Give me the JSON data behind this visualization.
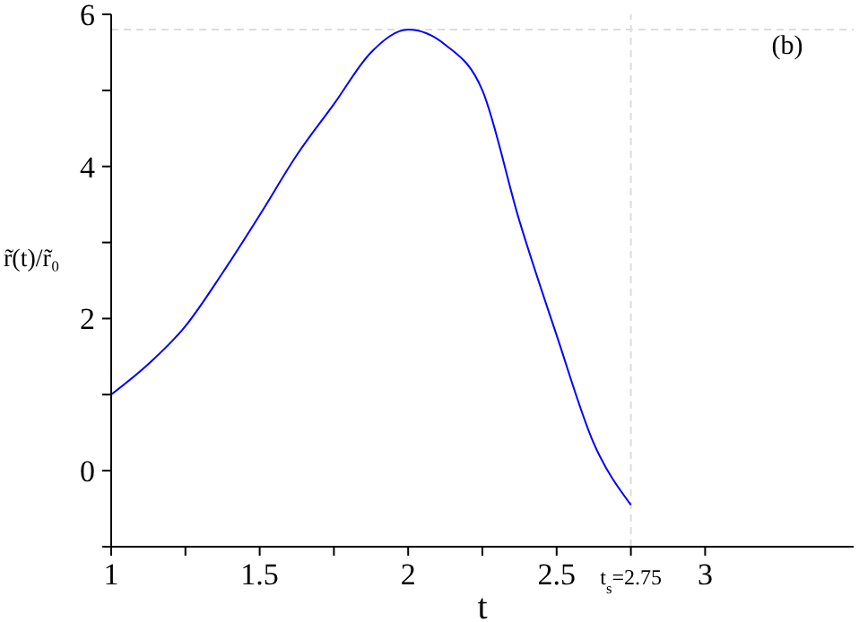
{
  "chart_data": {
    "type": "line",
    "xlabel": "t",
    "ylabel": "r̃(t)/r̃₀",
    "annotations": [
      "(b)"
    ],
    "x": [
      1,
      1.125,
      1.25,
      1.375,
      1.5,
      1.625,
      1.75,
      1.875,
      2,
      2.125,
      2.25,
      2.375,
      2.5,
      2.625,
      2.75
    ],
    "series": [
      {
        "color": "#0000ff",
        "values": [
          1,
          1.4,
          1.9,
          2.6,
          3.36,
          4.15,
          4.82,
          5.5,
          5.8,
          5.6,
          5.0,
          3.28,
          1.78,
          0.36,
          -0.45
        ]
      }
    ],
    "xlim": [
      1,
      3.5
    ],
    "xticks": [
      1,
      {
        "value": 1.25,
        "label": null
      },
      1.5,
      {
        "value": 1.75,
        "label": null
      },
      2,
      {
        "value": 2.25,
        "label": null
      },
      2.5,
      {
        "value": 2.75,
        "label": "t$_{s}$=2.75"
      },
      3
    ],
    "ylim": [
      -1,
      6
    ],
    "yticks": [
      {
        "value": -1,
        "label": null
      },
      0,
      {
        "value": 1,
        "label": null
      },
      2,
      {
        "value": 3,
        "label": null
      },
      4,
      {
        "value": 5,
        "label": null
      },
      6
    ],
    "ref_lines": [
      {
        "axis": "y",
        "value": 5.8,
        "color": "#dddddd",
        "line_style": "dashed"
      },
      {
        "axis": "x",
        "value": 2.75,
        "color": "#dddddd",
        "line_style": "dashed"
      }
    ],
    "marker": "none",
    "line_style": "solid"
  }
}
